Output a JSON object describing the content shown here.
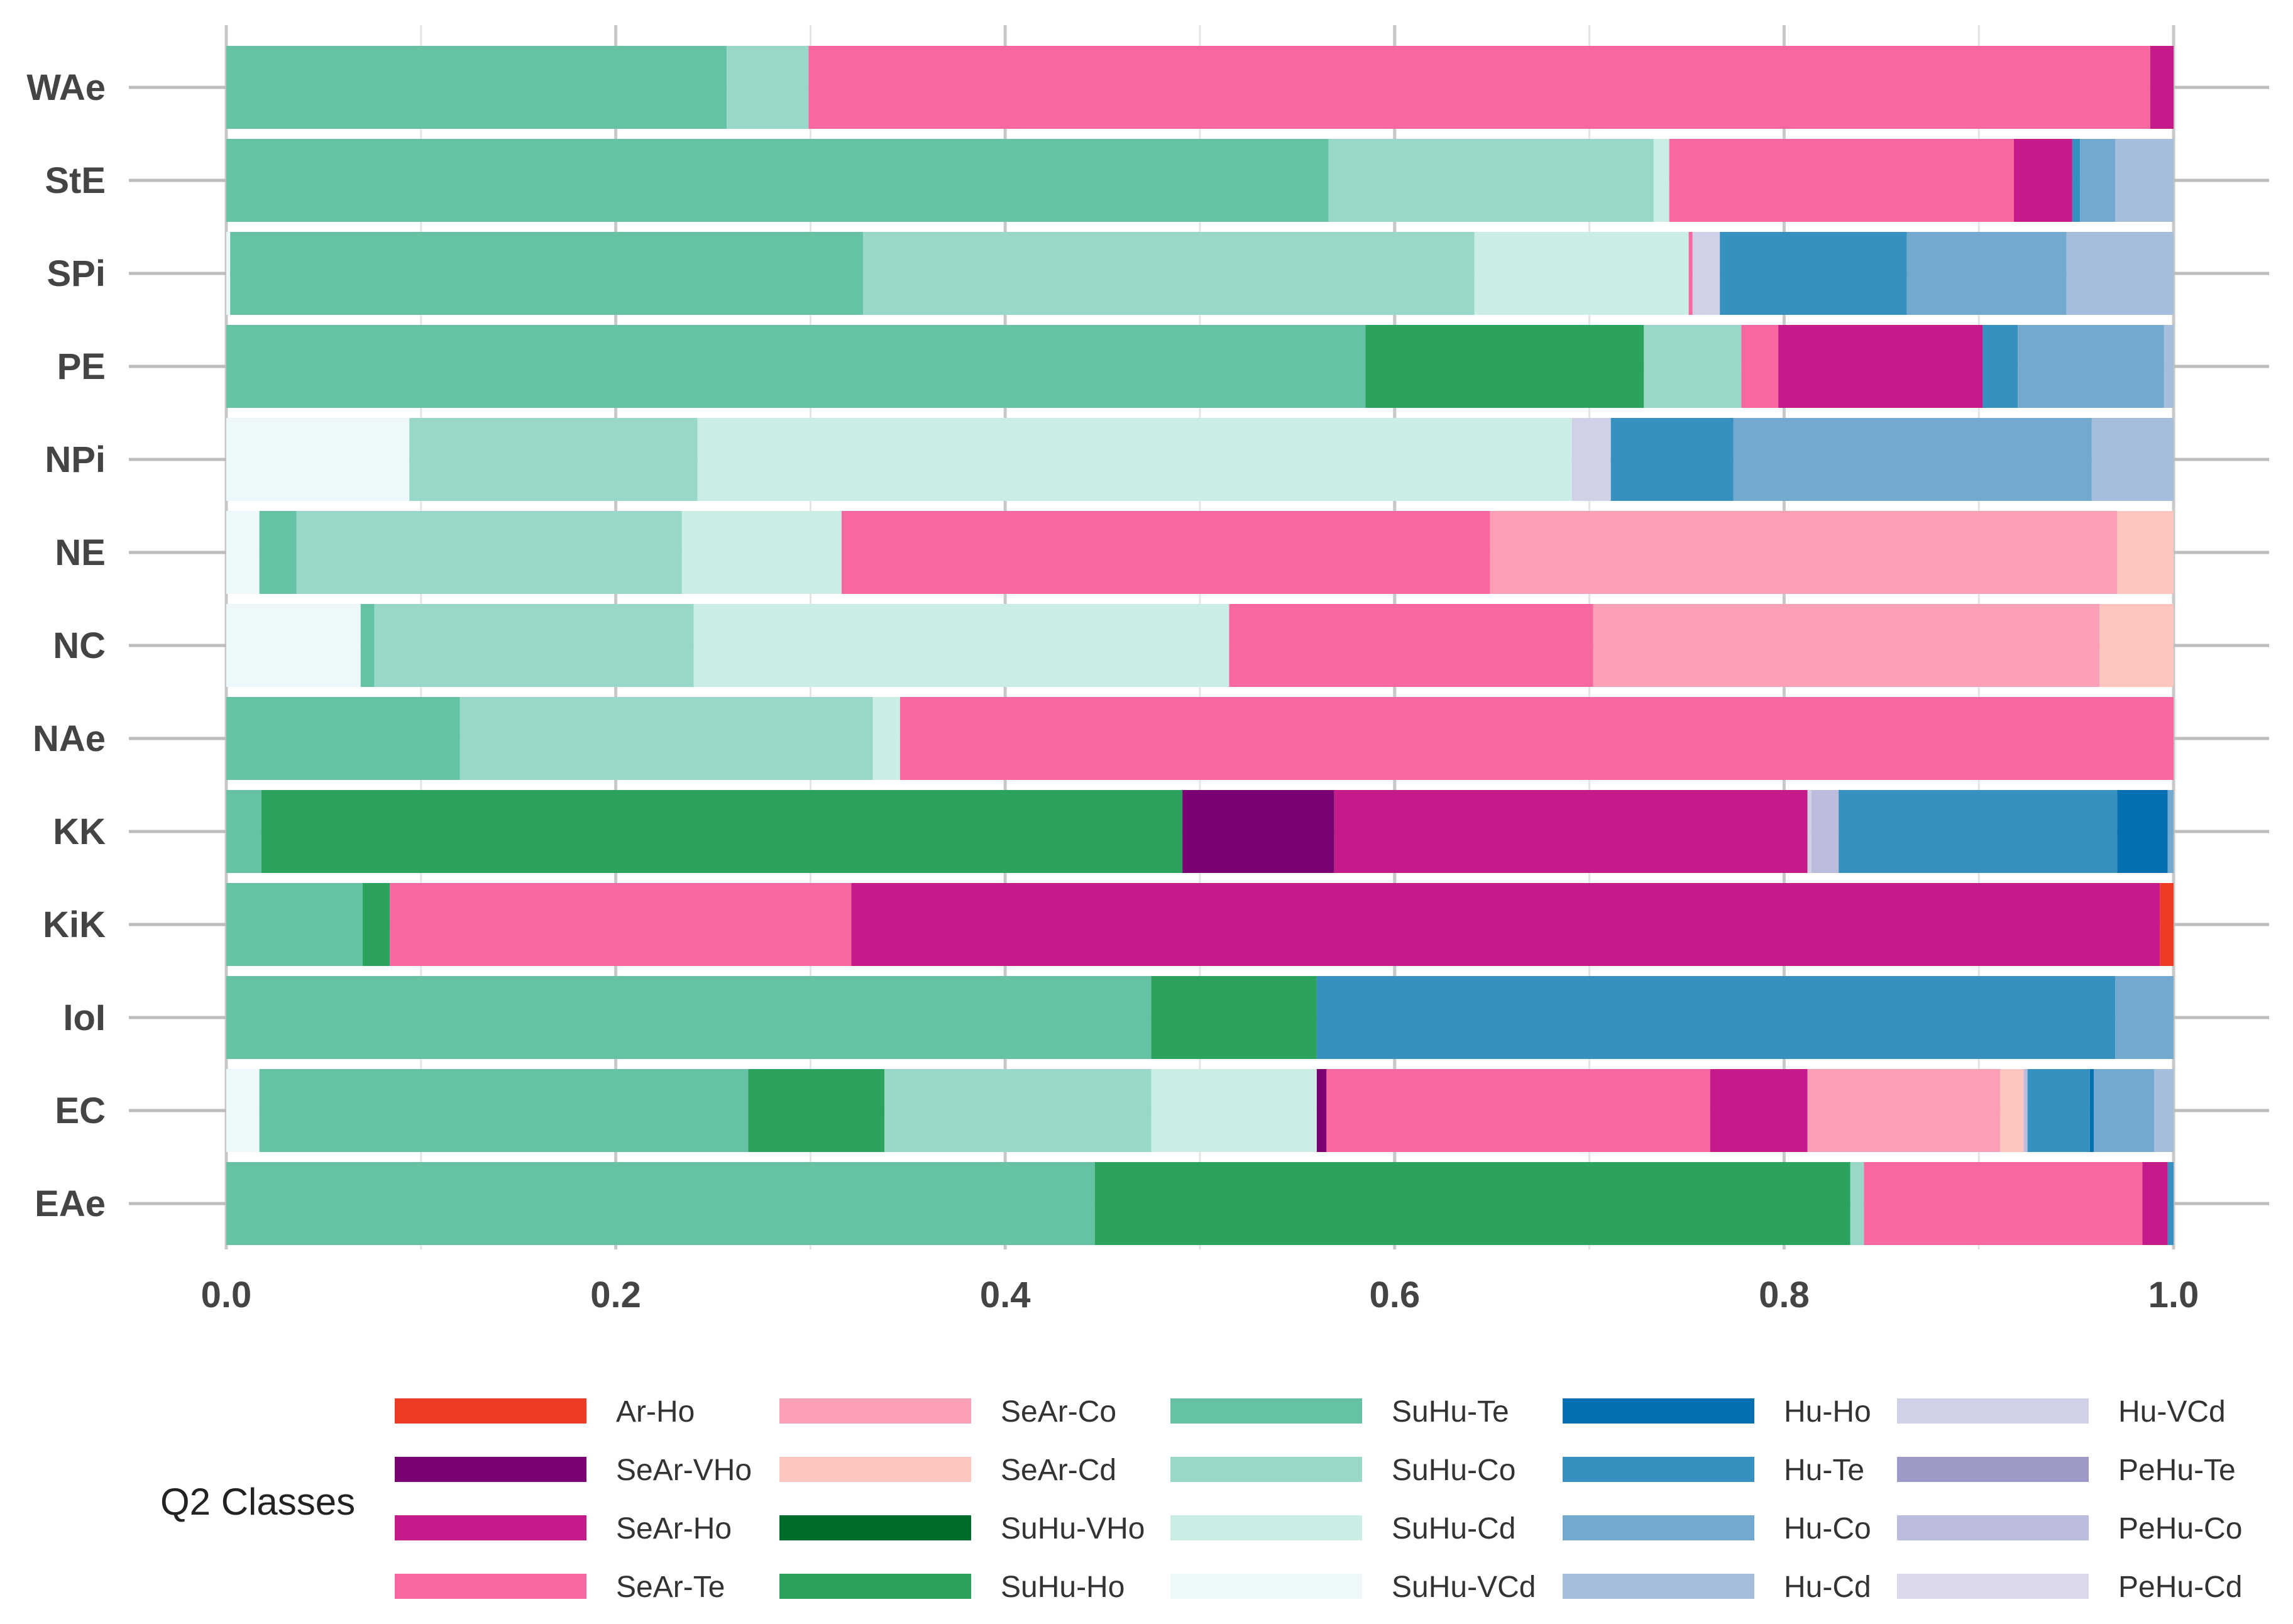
{
  "chart_data": {
    "type": "bar",
    "orientation": "horizontal",
    "stacked": true,
    "xlim": [
      0,
      1
    ],
    "x_ticks": [
      "0.0",
      "0.2",
      "0.4",
      "0.6",
      "0.8",
      "1.0"
    ],
    "x_tick_values": [
      0,
      0.2,
      0.4,
      0.6,
      0.8,
      1.0
    ],
    "grid": true,
    "legend_title": "Q2 Classes",
    "legend_position": "bottom",
    "classes": [
      {
        "name": "Ar-Ho",
        "color": "#ee3b24"
      },
      {
        "name": "SeAr-VHo",
        "color": "#7b0071"
      },
      {
        "name": "SeAr-Ho",
        "color": "#c51b8a"
      },
      {
        "name": "SeAr-Te",
        "color": "#f768a1"
      },
      {
        "name": "SeAr-Co",
        "color": "#fa9fb5"
      },
      {
        "name": "SeAr-Cd",
        "color": "#fcc5c0"
      },
      {
        "name": "SuHu-VHo",
        "color": "#006d2c"
      },
      {
        "name": "SuHu-Ho",
        "color": "#2ca25f"
      },
      {
        "name": "SuHu-Te",
        "color": "#66c2a4"
      },
      {
        "name": "SuHu-Co",
        "color": "#99d8c9"
      },
      {
        "name": "SuHu-Cd",
        "color": "#ccece6"
      },
      {
        "name": "SuHu-VCd",
        "color": "#edf8fb"
      },
      {
        "name": "Hu-Ho",
        "color": "#0570b0"
      },
      {
        "name": "Hu-Te",
        "color": "#3690c0"
      },
      {
        "name": "Hu-Co",
        "color": "#74a9cf"
      },
      {
        "name": "Hu-Cd",
        "color": "#a6bddb"
      },
      {
        "name": "Hu-VCd",
        "color": "#d0d1e6"
      },
      {
        "name": "PeHu-Te",
        "color": "#9e9ac8"
      },
      {
        "name": "PeHu-Co",
        "color": "#bcbddc"
      },
      {
        "name": "PeHu-Cd",
        "color": "#dadaeb"
      }
    ],
    "categories": [
      "WAe",
      "StE",
      "SPi",
      "PE",
      "NPi",
      "NE",
      "NC",
      "NAe",
      "KK",
      "KiK",
      "IoI",
      "EC",
      "EAe"
    ],
    "bars": [
      {
        "category": "WAe",
        "segments": [
          {
            "class": "SuHu-Te",
            "value": 0.257
          },
          {
            "class": "SuHu-Co",
            "value": 0.042
          },
          {
            "class": "SeAr-Te",
            "value": 0.689
          },
          {
            "class": "SeAr-Ho",
            "value": 0.012
          }
        ]
      },
      {
        "category": "StE",
        "segments": [
          {
            "class": "SuHu-Te",
            "value": 0.566
          },
          {
            "class": "SuHu-Co",
            "value": 0.167
          },
          {
            "class": "SuHu-Cd",
            "value": 0.008
          },
          {
            "class": "SeAr-Te",
            "value": 0.177
          },
          {
            "class": "SeAr-Ho",
            "value": 0.03
          },
          {
            "class": "Hu-Te",
            "value": 0.004
          },
          {
            "class": "Hu-Co",
            "value": 0.018
          },
          {
            "class": "Hu-Cd",
            "value": 0.03
          }
        ]
      },
      {
        "category": "SPi",
        "segments": [
          {
            "class": "SuHu-VCd",
            "value": 0.002
          },
          {
            "class": "SuHu-Te",
            "value": 0.325
          },
          {
            "class": "SuHu-Co",
            "value": 0.314
          },
          {
            "class": "SuHu-Cd",
            "value": 0.11
          },
          {
            "class": "SeAr-Te",
            "value": 0.002
          },
          {
            "class": "Hu-VCd",
            "value": 0.014
          },
          {
            "class": "Hu-Te",
            "value": 0.096
          },
          {
            "class": "Hu-Co",
            "value": 0.082
          },
          {
            "class": "Hu-Cd",
            "value": 0.055
          }
        ]
      },
      {
        "category": "PE",
        "segments": [
          {
            "class": "SuHu-Te",
            "value": 0.585
          },
          {
            "class": "SuHu-Ho",
            "value": 0.143
          },
          {
            "class": "SuHu-Co",
            "value": 0.05
          },
          {
            "class": "SeAr-Te",
            "value": 0.019
          },
          {
            "class": "SeAr-Ho",
            "value": 0.105
          },
          {
            "class": "Hu-Te",
            "value": 0.018
          },
          {
            "class": "Hu-Co",
            "value": 0.075
          },
          {
            "class": "Hu-Cd",
            "value": 0.005
          }
        ]
      },
      {
        "category": "NPi",
        "segments": [
          {
            "class": "SuHu-VCd",
            "value": 0.094
          },
          {
            "class": "SuHu-Co",
            "value": 0.148
          },
          {
            "class": "SuHu-Cd",
            "value": 0.449
          },
          {
            "class": "Hu-VCd",
            "value": 0.02
          },
          {
            "class": "Hu-Te",
            "value": 0.063
          },
          {
            "class": "Hu-Co",
            "value": 0.184
          },
          {
            "class": "Hu-Cd",
            "value": 0.042
          }
        ]
      },
      {
        "category": "NE",
        "segments": [
          {
            "class": "SuHu-VCd",
            "value": 0.017
          },
          {
            "class": "SuHu-Te",
            "value": 0.019
          },
          {
            "class": "SuHu-Co",
            "value": 0.198
          },
          {
            "class": "SuHu-Cd",
            "value": 0.082
          },
          {
            "class": "SeAr-Te",
            "value": 0.333
          },
          {
            "class": "SeAr-Co",
            "value": 0.322
          },
          {
            "class": "SeAr-Cd",
            "value": 0.029
          }
        ]
      },
      {
        "category": "NC",
        "segments": [
          {
            "class": "SuHu-VCd",
            "value": 0.069
          },
          {
            "class": "SuHu-Te",
            "value": 0.007
          },
          {
            "class": "SuHu-Co",
            "value": 0.164
          },
          {
            "class": "SuHu-Cd",
            "value": 0.275
          },
          {
            "class": "SeAr-Te",
            "value": 0.187
          },
          {
            "class": "SeAr-Co",
            "value": 0.26
          },
          {
            "class": "SeAr-Cd",
            "value": 0.038
          }
        ]
      },
      {
        "category": "NAe",
        "segments": [
          {
            "class": "SuHu-Te",
            "value": 0.12
          },
          {
            "class": "SuHu-Co",
            "value": 0.212
          },
          {
            "class": "SuHu-Cd",
            "value": 0.014
          },
          {
            "class": "SeAr-Te",
            "value": 0.654
          }
        ]
      },
      {
        "category": "KK",
        "segments": [
          {
            "class": "SuHu-Te",
            "value": 0.018
          },
          {
            "class": "SuHu-Ho",
            "value": 0.473
          },
          {
            "class": "SeAr-VHo",
            "value": 0.078
          },
          {
            "class": "SeAr-Ho",
            "value": 0.243
          },
          {
            "class": "Hu-VCd",
            "value": 0.002
          },
          {
            "class": "PeHu-Co",
            "value": 0.014
          },
          {
            "class": "Hu-Te",
            "value": 0.143
          },
          {
            "class": "Hu-Ho",
            "value": 0.026
          },
          {
            "class": "Hu-Co",
            "value": 0.003
          }
        ]
      },
      {
        "category": "KiK",
        "segments": [
          {
            "class": "SuHu-Te",
            "value": 0.07
          },
          {
            "class": "SuHu-Ho",
            "value": 0.014
          },
          {
            "class": "SeAr-Te",
            "value": 0.237
          },
          {
            "class": "SeAr-Ho",
            "value": 0.672
          },
          {
            "class": "Ar-Ho",
            "value": 0.007
          }
        ]
      },
      {
        "category": "IoI",
        "segments": [
          {
            "class": "SuHu-Te",
            "value": 0.475
          },
          {
            "class": "SuHu-Ho",
            "value": 0.085
          },
          {
            "class": "Hu-Te",
            "value": 0.41
          },
          {
            "class": "Hu-Co",
            "value": 0.03
          }
        ]
      },
      {
        "category": "EC",
        "segments": [
          {
            "class": "SuHu-VCd",
            "value": 0.017
          },
          {
            "class": "SuHu-Te",
            "value": 0.251
          },
          {
            "class": "SuHu-Ho",
            "value": 0.07
          },
          {
            "class": "SuHu-Co",
            "value": 0.137
          },
          {
            "class": "SuHu-Cd",
            "value": 0.085
          },
          {
            "class": "SeAr-VHo",
            "value": 0.005
          },
          {
            "class": "SeAr-Te",
            "value": 0.197
          },
          {
            "class": "SeAr-Ho",
            "value": 0.05
          },
          {
            "class": "SeAr-Co",
            "value": 0.099
          },
          {
            "class": "SeAr-Cd",
            "value": 0.012
          },
          {
            "class": "PeHu-Co",
            "value": 0.002
          },
          {
            "class": "Hu-Te",
            "value": 0.032
          },
          {
            "class": "Hu-Ho",
            "value": 0.002
          },
          {
            "class": "Hu-Co",
            "value": 0.031
          },
          {
            "class": "Hu-Cd",
            "value": 0.01
          }
        ]
      },
      {
        "category": "EAe",
        "segments": [
          {
            "class": "SuHu-Te",
            "value": 0.446
          },
          {
            "class": "SuHu-Ho",
            "value": 0.388
          },
          {
            "class": "SuHu-Co",
            "value": 0.007
          },
          {
            "class": "SeAr-Te",
            "value": 0.143
          },
          {
            "class": "SeAr-Ho",
            "value": 0.013
          },
          {
            "class": "Hu-Te",
            "value": 0.003
          }
        ]
      }
    ]
  }
}
